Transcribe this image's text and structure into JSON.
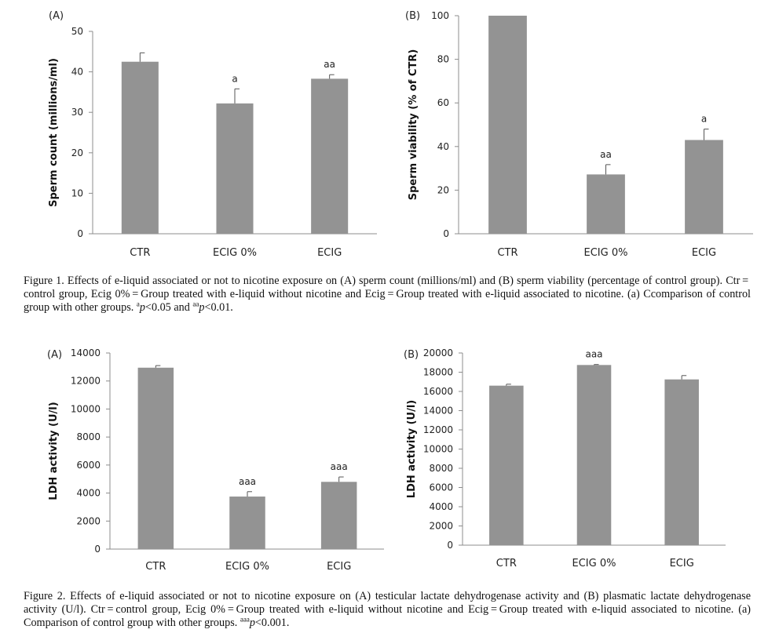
{
  "figure1": {
    "caption": {
      "label": "Figure 1.",
      "text_a": "Effects of e-liquid associated or not to nicotine exposure on (A) sperm count (millions/ml) and (B) sperm viability (percentage of control group). Ctr = control group, Ecig 0% = Group treated with e-liquid without nicotine and Ecig = Group treated with e-liquid associated to nicotine. (a) Ccomparison of control group with other groups.",
      "sup1": "a",
      "p1": "p",
      "t1": "<0.05 and",
      "sup2": "aa",
      "p2": "p",
      "t2": "<0.01."
    }
  },
  "figure2": {
    "caption": {
      "label": "Figure 2.",
      "text_a": "Effects of e-liquid associated or not to nicotine exposure on (A) testicular lactate dehydrogenase activity and (B) plasmatic lactate dehydrogenase activity (U/l). Ctr = control group, Ecig 0% = Group treated with e-liquid without nicotine and Ecig = Group treated with e-liquid associated to nicotine. (a) Comparison of control group with other groups.",
      "sup1": "aaa",
      "p1": "p",
      "t1": "<0.001."
    }
  },
  "colors": {
    "bar": "#939393",
    "axis": "#8c8c8c"
  },
  "chart_data": [
    {
      "id": "fig1A",
      "type": "bar",
      "panel_label": "(A)",
      "categories": [
        "CTR",
        "ECIG 0%",
        "ECIG"
      ],
      "values": [
        42.5,
        32.2,
        38.3
      ],
      "errors": [
        2.2,
        3.6,
        1.0
      ],
      "significance": [
        "",
        "a",
        "aa"
      ],
      "ylabel": "Sperm count (millions/ml)",
      "ylim": [
        0,
        50
      ],
      "yticks": [
        0,
        10,
        20,
        30,
        40,
        50
      ],
      "ytick_labels": [
        "0",
        "10",
        "20",
        "30",
        "40",
        "50"
      ],
      "grid": false
    },
    {
      "id": "fig1B",
      "type": "bar",
      "panel_label": "(B)",
      "categories": [
        "CTR",
        "ECIG 0%",
        "ECIG"
      ],
      "values": [
        100,
        27.2,
        43.0
      ],
      "errors": [
        0,
        4.5,
        5.0
      ],
      "significance": [
        "",
        "aa",
        "a"
      ],
      "ylabel": "Sperm viability (% of CTR)",
      "ylim": [
        0,
        100
      ],
      "yticks": [
        0,
        20,
        40,
        60,
        80,
        100
      ],
      "ytick_labels": [
        "0",
        "20",
        "40",
        "60",
        "80",
        "100"
      ],
      "grid": false
    },
    {
      "id": "fig2A",
      "type": "bar",
      "panel_label": "(A)",
      "categories": [
        "CTR",
        "ECIG 0%",
        "ECIG"
      ],
      "values": [
        12950,
        3750,
        4800
      ],
      "errors": [
        150,
        350,
        350
      ],
      "significance": [
        "",
        "aaa",
        "aaa"
      ],
      "ylabel": "LDH activity (U/l)",
      "ylim": [
        0,
        14000
      ],
      "yticks": [
        0,
        2000,
        4000,
        6000,
        8000,
        10000,
        12000,
        14000
      ],
      "ytick_labels": [
        "0",
        "2000",
        "4000",
        "6000",
        "8000",
        "10000",
        "12000",
        "14000"
      ],
      "grid": false
    },
    {
      "id": "fig2B",
      "type": "bar",
      "panel_label": "(B)",
      "categories": [
        "CTR",
        "ECIG 0%",
        "ECIG"
      ],
      "values": [
        16600,
        18750,
        17250
      ],
      "errors": [
        150,
        50,
        400
      ],
      "significance": [
        "",
        "aaa",
        ""
      ],
      "ylabel": "LDH activity (U/l)",
      "ylim": [
        0,
        20000
      ],
      "yticks": [
        0,
        2000,
        4000,
        6000,
        8000,
        10000,
        12000,
        14000,
        16000,
        18000,
        20000
      ],
      "ytick_labels": [
        "0",
        "2000",
        "4000",
        "6000",
        "8000",
        "10000",
        "12000",
        "14000",
        "16000",
        "18000",
        "20000"
      ],
      "grid": false
    }
  ]
}
